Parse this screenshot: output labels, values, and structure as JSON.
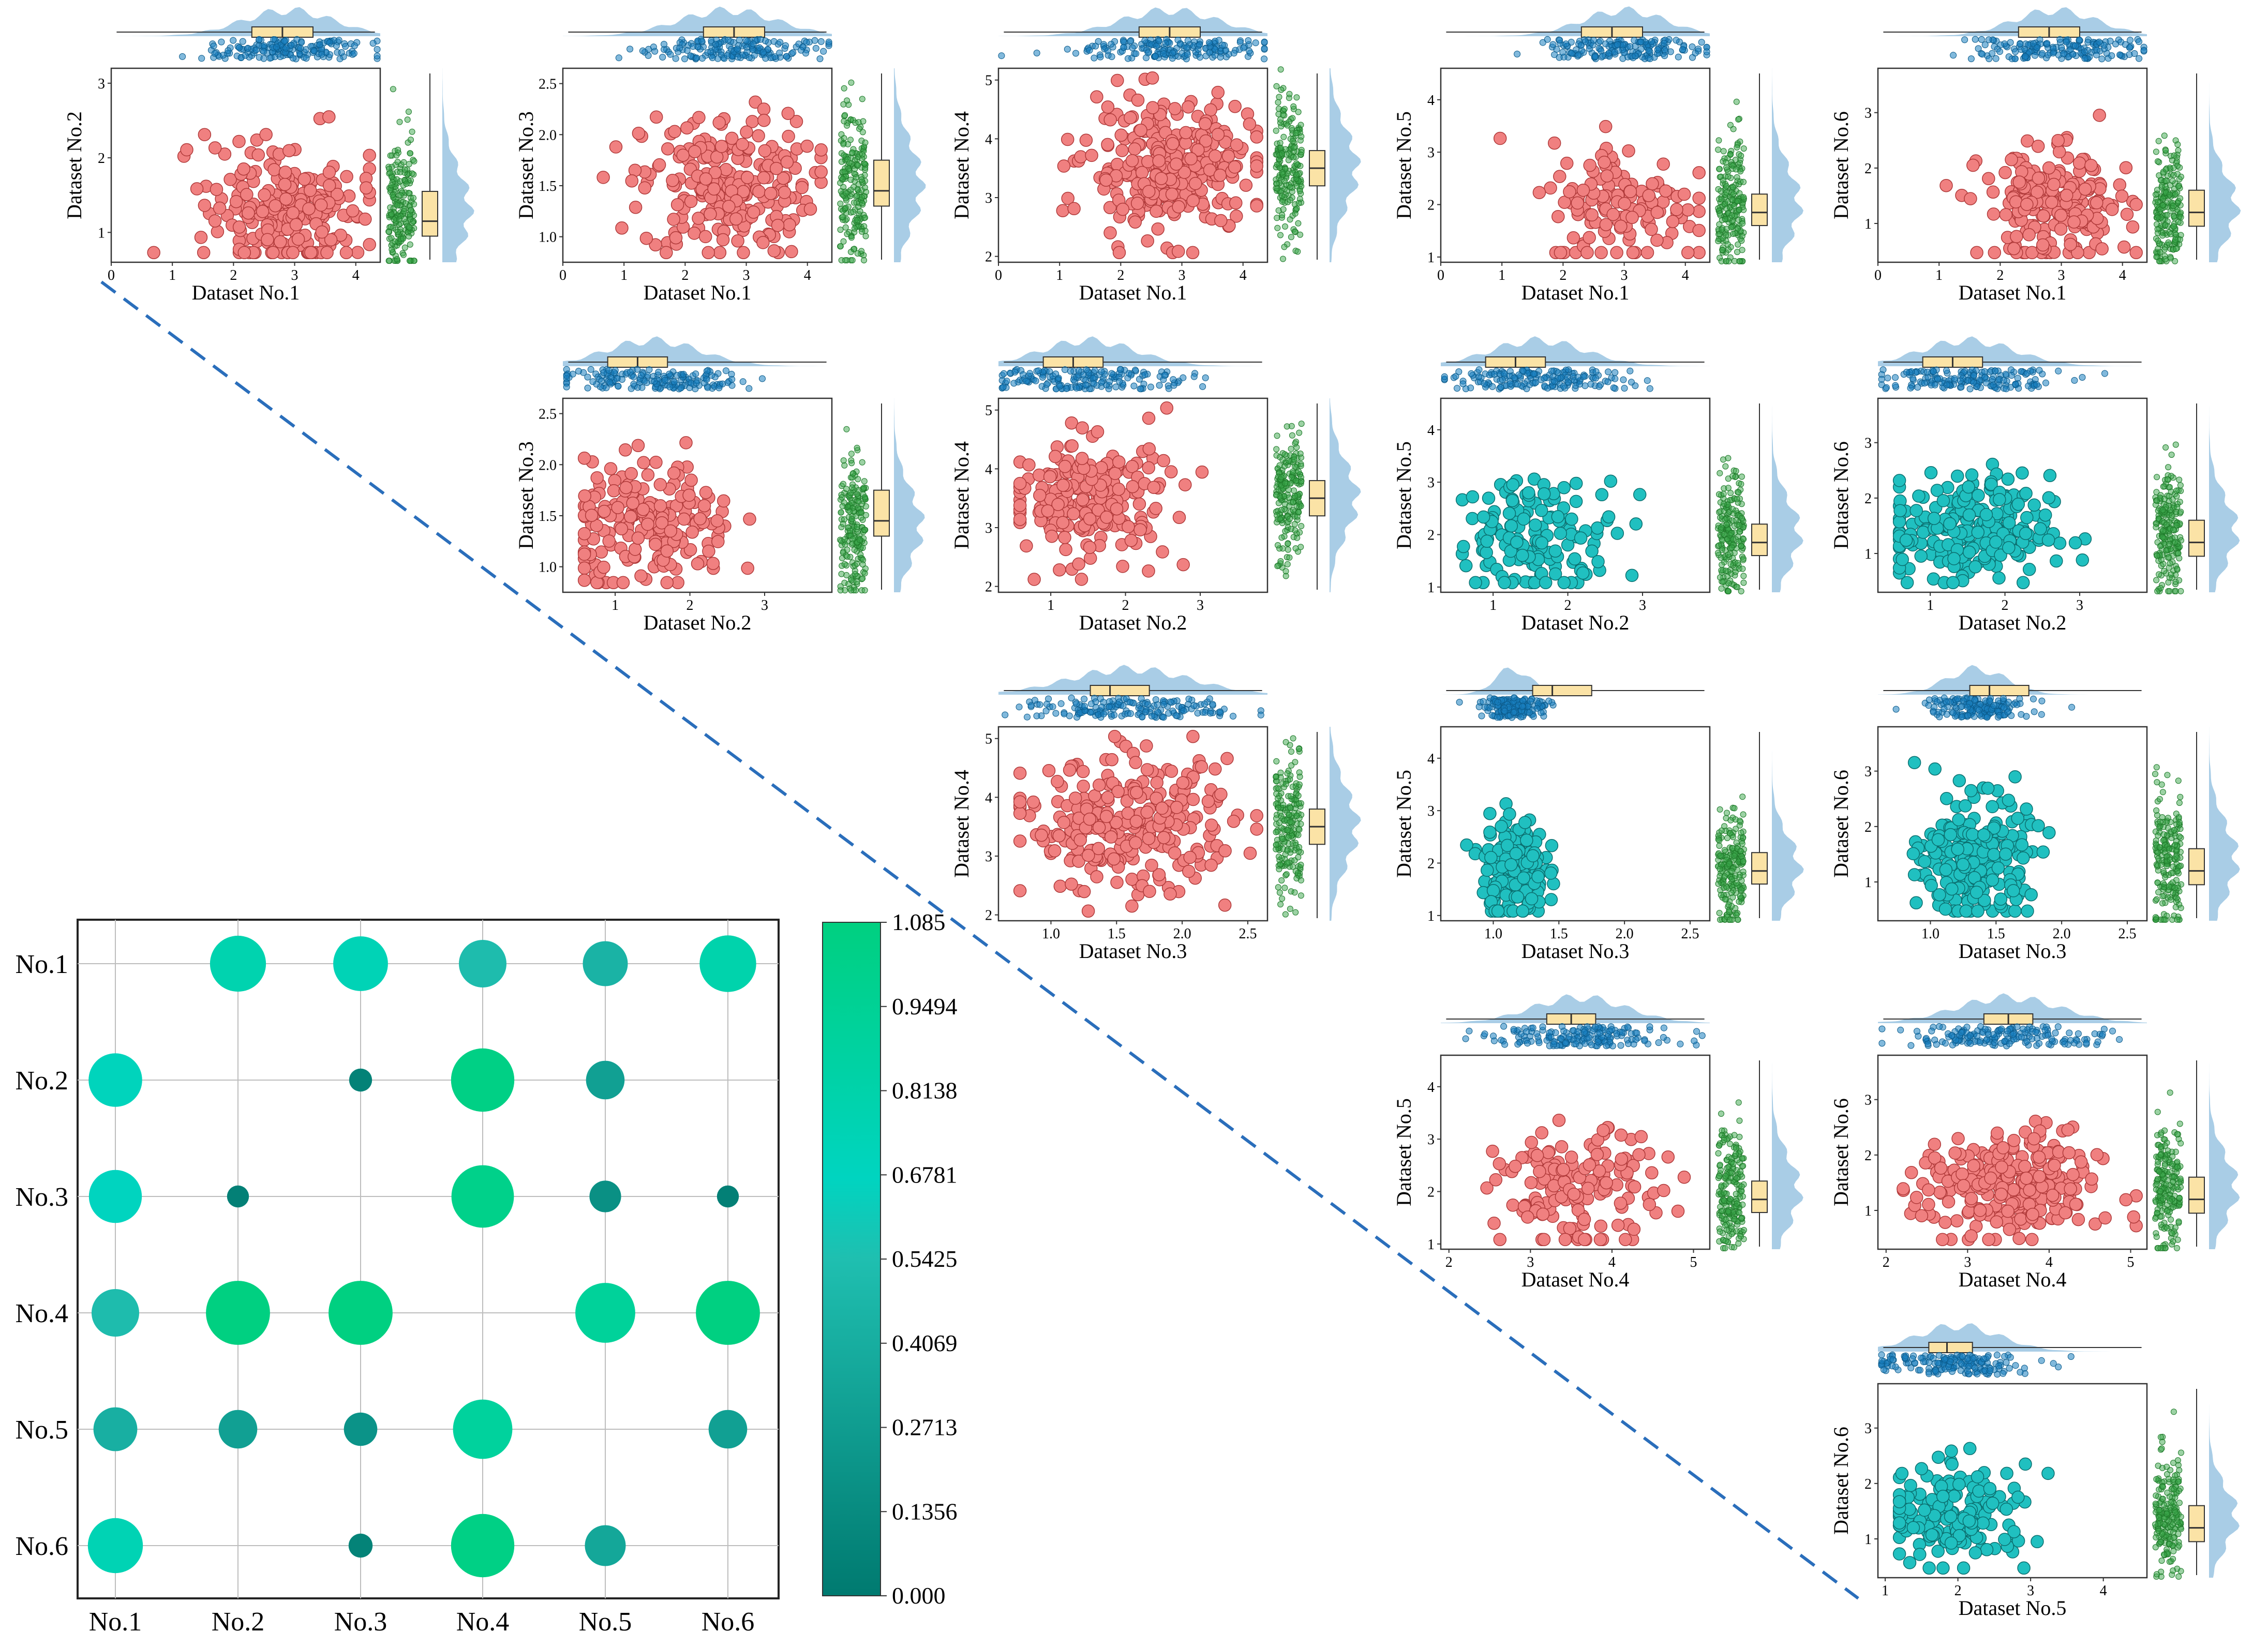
{
  "chart_data": {
    "type": "scatter-matrix",
    "datasets": [
      "Dataset No.1",
      "Dataset No.2",
      "Dataset No.3",
      "Dataset No.4",
      "Dataset No.5",
      "Dataset No.6"
    ],
    "colors": {
      "scatter_red": "#f08080",
      "scatter_cyan": "#20c0c0",
      "top_points": "#1a7fbf",
      "side_points": "#3aa64a",
      "density": "#a9cde6",
      "box": "#fbe3a6",
      "diagonal": "#2a6ebb",
      "cmap_low": "#007a70",
      "cmap_high": "#00d080"
    },
    "panels": [
      {
        "xi": 0,
        "yi": 1,
        "xlabel": "Dataset No.1",
        "ylabel": "Dataset No.2",
        "color": "red",
        "xlim": [
          0,
          4.4
        ],
        "ylim": [
          0.6,
          3.2
        ],
        "xticks": [
          0,
          1,
          2,
          3,
          4
        ],
        "yticks": [
          1,
          2,
          3
        ],
        "xcenter": 2.9,
        "xsd": 0.65,
        "ycenter": 1.3,
        "ysd": 0.45,
        "n": 240,
        "ybox": [
          0.95,
          1.15,
          1.55
        ],
        "xbox": [
          2.3,
          2.8,
          3.3
        ]
      },
      {
        "xi": 0,
        "yi": 2,
        "xlabel": "Dataset No.1",
        "ylabel": "Dataset No.3",
        "color": "red",
        "xlim": [
          0,
          4.4
        ],
        "ylim": [
          0.75,
          2.65
        ],
        "xticks": [
          0,
          1,
          2,
          3,
          4
        ],
        "yticks": [
          "1.0",
          "1.5",
          "2.0",
          "2.5"
        ],
        "xcenter": 2.7,
        "xsd": 0.7,
        "ycenter": 1.5,
        "ysd": 0.35,
        "n": 240,
        "ybox": [
          1.3,
          1.45,
          1.75
        ],
        "xbox": [
          2.3,
          2.8,
          3.3
        ]
      },
      {
        "xi": 0,
        "yi": 3,
        "xlabel": "Dataset No.1",
        "ylabel": "Dataset No.4",
        "color": "red",
        "xlim": [
          0,
          4.4
        ],
        "ylim": [
          1.9,
          5.2
        ],
        "xticks": [
          0,
          1,
          2,
          3,
          4
        ],
        "yticks": [
          2,
          3,
          4,
          5
        ],
        "xcenter": 2.8,
        "xsd": 0.7,
        "ycenter": 3.5,
        "ysd": 0.55,
        "n": 300,
        "ybox": [
          3.2,
          3.5,
          3.8
        ],
        "xbox": [
          2.3,
          2.8,
          3.3
        ]
      },
      {
        "xi": 0,
        "yi": 4,
        "xlabel": "Dataset No.1",
        "ylabel": "Dataset No.5",
        "color": "red",
        "xlim": [
          0,
          4.4
        ],
        "ylim": [
          0.9,
          4.6
        ],
        "xticks": [
          0,
          1,
          2,
          3,
          4
        ],
        "yticks": [
          1,
          2,
          3,
          4
        ],
        "xcenter": 3.0,
        "xsd": 0.6,
        "ycenter": 2.0,
        "ysd": 0.6,
        "n": 140,
        "ybox": [
          1.6,
          1.85,
          2.2
        ],
        "xbox": [
          2.3,
          2.8,
          3.3
        ]
      },
      {
        "xi": 0,
        "yi": 5,
        "xlabel": "Dataset No.1",
        "ylabel": "Dataset No.6",
        "color": "red",
        "xlim": [
          0,
          4.4
        ],
        "ylim": [
          0.3,
          3.8
        ],
        "xticks": [
          0,
          1,
          2,
          3,
          4
        ],
        "yticks": [
          1,
          2,
          3
        ],
        "xcenter": 2.9,
        "xsd": 0.6,
        "ycenter": 1.3,
        "ysd": 0.5,
        "n": 220,
        "ybox": [
          0.95,
          1.2,
          1.6
        ],
        "xbox": [
          2.3,
          2.8,
          3.3
        ]
      },
      {
        "xi": 1,
        "yi": 2,
        "xlabel": "Dataset No.2",
        "ylabel": "Dataset No.3",
        "color": "red",
        "xlim": [
          0.3,
          3.9
        ],
        "ylim": [
          0.75,
          2.65
        ],
        "xticks": [
          1,
          2,
          3
        ],
        "yticks": [
          "1.0",
          "1.5",
          "2.0",
          "2.5"
        ],
        "xcenter": 1.5,
        "xsd": 0.55,
        "ycenter": 1.4,
        "ysd": 0.3,
        "n": 200,
        "ybox": [
          1.3,
          1.45,
          1.75
        ],
        "xbox": [
          0.9,
          1.3,
          1.7
        ]
      },
      {
        "xi": 1,
        "yi": 3,
        "xlabel": "Dataset No.2",
        "ylabel": "Dataset No.4",
        "color": "red",
        "xlim": [
          0.3,
          3.9
        ],
        "ylim": [
          1.9,
          5.2
        ],
        "xticks": [
          1,
          2,
          3
        ],
        "yticks": [
          2,
          3,
          4,
          5
        ],
        "xcenter": 1.5,
        "xsd": 0.55,
        "ycenter": 3.5,
        "ysd": 0.5,
        "n": 220,
        "ybox": [
          3.2,
          3.5,
          3.8
        ],
        "xbox": [
          0.9,
          1.3,
          1.7
        ]
      },
      {
        "xi": 1,
        "yi": 4,
        "xlabel": "Dataset No.2",
        "ylabel": "Dataset No.5",
        "color": "cyan",
        "xlim": [
          0.3,
          3.9
        ],
        "ylim": [
          0.9,
          4.6
        ],
        "xticks": [
          1,
          2,
          3
        ],
        "yticks": [
          1,
          2,
          3,
          4
        ],
        "xcenter": 1.6,
        "xsd": 0.55,
        "ycenter": 2.0,
        "ysd": 0.55,
        "n": 150,
        "ybox": [
          1.6,
          1.85,
          2.2
        ],
        "xbox": [
          0.9,
          1.3,
          1.7
        ]
      },
      {
        "xi": 1,
        "yi": 5,
        "xlabel": "Dataset No.2",
        "ylabel": "Dataset No.6",
        "color": "cyan",
        "xlim": [
          0.3,
          3.9
        ],
        "ylim": [
          0.3,
          3.8
        ],
        "xticks": [
          1,
          2,
          3
        ],
        "yticks": [
          1,
          2,
          3
        ],
        "xcenter": 1.5,
        "xsd": 0.55,
        "ycenter": 1.4,
        "ysd": 0.5,
        "n": 230,
        "ybox": [
          0.95,
          1.2,
          1.6
        ],
        "xbox": [
          0.9,
          1.3,
          1.7
        ]
      },
      {
        "xi": 2,
        "yi": 3,
        "xlabel": "Dataset No.3",
        "ylabel": "Dataset No.4",
        "color": "red",
        "xlim": [
          0.6,
          2.65
        ],
        "ylim": [
          1.9,
          5.2
        ],
        "xticks": [
          "1.0",
          "1.5",
          "2.0",
          "2.5"
        ],
        "yticks": [
          2,
          3,
          4,
          5
        ],
        "xcenter": 1.6,
        "xsd": 0.4,
        "ycenter": 3.5,
        "ysd": 0.55,
        "n": 280,
        "ybox": [
          3.2,
          3.5,
          3.8
        ],
        "xbox": [
          1.3,
          1.45,
          1.75
        ]
      },
      {
        "xi": 2,
        "yi": 4,
        "xlabel": "Dataset No.3",
        "ylabel": "Dataset No.5",
        "color": "cyan",
        "xlim": [
          0.6,
          2.65
        ],
        "ylim": [
          0.9,
          4.6
        ],
        "xticks": [
          "1.0",
          "1.5",
          "2.0",
          "2.5"
        ],
        "yticks": [
          1,
          2,
          3,
          4
        ],
        "xcenter": 1.15,
        "xsd": 0.12,
        "ycenter": 1.9,
        "ysd": 0.5,
        "n": 180,
        "ybox": [
          1.6,
          1.85,
          2.2
        ],
        "xbox": [
          1.3,
          1.45,
          1.75
        ]
      },
      {
        "xi": 2,
        "yi": 5,
        "xlabel": "Dataset No.3",
        "ylabel": "Dataset No.6",
        "color": "cyan",
        "xlim": [
          0.6,
          2.65
        ],
        "ylim": [
          0.3,
          3.8
        ],
        "xticks": [
          "1.0",
          "1.5",
          "2.0",
          "2.5"
        ],
        "yticks": [
          1,
          2,
          3
        ],
        "xcenter": 1.35,
        "xsd": 0.2,
        "ycenter": 1.4,
        "ysd": 0.55,
        "n": 240,
        "ybox": [
          0.95,
          1.2,
          1.6
        ],
        "xbox": [
          1.3,
          1.45,
          1.75
        ]
      },
      {
        "xi": 3,
        "yi": 4,
        "xlabel": "Dataset No.4",
        "ylabel": "Dataset No.5",
        "color": "red",
        "xlim": [
          1.9,
          5.2
        ],
        "ylim": [
          0.9,
          4.6
        ],
        "xticks": [
          2,
          3,
          4,
          5
        ],
        "yticks": [
          1,
          2,
          3,
          4
        ],
        "xcenter": 3.6,
        "xsd": 0.5,
        "ycenter": 2.0,
        "ysd": 0.55,
        "n": 150,
        "ybox": [
          1.6,
          1.85,
          2.2
        ],
        "xbox": [
          3.2,
          3.5,
          3.8
        ]
      },
      {
        "xi": 3,
        "yi": 5,
        "xlabel": "Dataset No.4",
        "ylabel": "Dataset No.6",
        "color": "red",
        "xlim": [
          1.9,
          5.2
        ],
        "ylim": [
          0.3,
          3.8
        ],
        "xticks": [
          2,
          3,
          4,
          5
        ],
        "yticks": [
          1,
          2,
          3
        ],
        "xcenter": 3.5,
        "xsd": 0.55,
        "ycenter": 1.4,
        "ysd": 0.5,
        "n": 260,
        "ybox": [
          0.95,
          1.2,
          1.6
        ],
        "xbox": [
          3.2,
          3.5,
          3.8
        ]
      },
      {
        "xi": 4,
        "yi": 5,
        "xlabel": "Dataset No.5",
        "ylabel": "Dataset No.6",
        "color": "cyan",
        "xlim": [
          0.9,
          4.6
        ],
        "ylim": [
          0.3,
          3.8
        ],
        "xticks": [
          1,
          2,
          3,
          4
        ],
        "yticks": [
          1,
          2,
          3
        ],
        "xcenter": 2.0,
        "xsd": 0.5,
        "ycenter": 1.4,
        "ysd": 0.45,
        "n": 170,
        "ybox": [
          0.95,
          1.2,
          1.6
        ],
        "xbox": [
          1.6,
          1.85,
          2.2
        ]
      }
    ],
    "bubble": {
      "row_labels": [
        "No.1",
        "No.2",
        "No.3",
        "No.4",
        "No.5",
        "No.6"
      ],
      "col_labels": [
        "No.1",
        "No.2",
        "No.3",
        "No.4",
        "No.5",
        "No.6"
      ],
      "values": [
        [
          null,
          0.78,
          0.74,
          0.52,
          0.45,
          0.8
        ],
        [
          0.7,
          null,
          0.06,
          1.05,
          0.3,
          null
        ],
        [
          0.68,
          0.05,
          null,
          1.02,
          0.17,
          0.05
        ],
        [
          0.52,
          1.08,
          1.08,
          null,
          0.92,
          1.08
        ],
        [
          0.42,
          0.3,
          0.2,
          0.9,
          null,
          0.3
        ],
        [
          0.75,
          null,
          0.07,
          1.05,
          0.35,
          null
        ]
      ],
      "colorbar_ticks": [
        "1.085",
        "0.9494",
        "0.8138",
        "0.6781",
        "0.5425",
        "0.4069",
        "0.2713",
        "0.1356",
        "0.000"
      ],
      "vmin": 0.0,
      "vmax": 1.085
    }
  }
}
